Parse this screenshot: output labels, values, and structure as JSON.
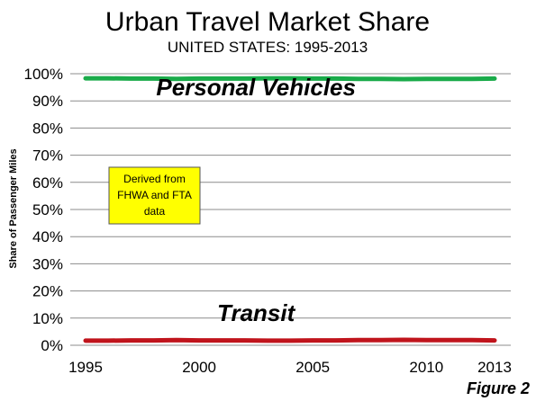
{
  "chart_data": {
    "type": "line",
    "title": "Urban Travel Market Share",
    "subtitle": "UNITED STATES: 1995-2013",
    "ylabel": "Share of Passenger Miles",
    "xlabel": "",
    "ylim": [
      0,
      100
    ],
    "xlim": [
      1995,
      2013
    ],
    "y_ticks": [
      "0%",
      "10%",
      "20%",
      "30%",
      "40%",
      "50%",
      "60%",
      "70%",
      "80%",
      "90%",
      "100%"
    ],
    "y_tick_values": [
      0,
      10,
      20,
      30,
      40,
      50,
      60,
      70,
      80,
      90,
      100
    ],
    "x_ticks": [
      "1995",
      "2000",
      "2005",
      "2010",
      "2013"
    ],
    "x_tick_values": [
      1995,
      2000,
      2005,
      2010,
      2013
    ],
    "grid": "horizontal",
    "x": [
      1995,
      1996,
      1997,
      1998,
      1999,
      2000,
      2001,
      2002,
      2003,
      2004,
      2005,
      2006,
      2007,
      2008,
      2009,
      2010,
      2011,
      2012,
      2013
    ],
    "series": [
      {
        "name": "Personal Vehicles",
        "color": "#1aab4a",
        "values": [
          98.3,
          98.3,
          98.2,
          98.2,
          98.1,
          98.2,
          98.2,
          98.2,
          98.3,
          98.3,
          98.2,
          98.2,
          98.1,
          98.1,
          98.0,
          98.1,
          98.1,
          98.1,
          98.2
        ]
      },
      {
        "name": "Transit",
        "color": "#c0141c",
        "values": [
          1.7,
          1.7,
          1.8,
          1.8,
          1.9,
          1.8,
          1.8,
          1.8,
          1.7,
          1.7,
          1.8,
          1.8,
          1.9,
          1.9,
          2.0,
          1.9,
          1.9,
          1.9,
          1.8
        ]
      }
    ],
    "annotations": [
      {
        "text": "Personal Vehicles",
        "x": 2002.5,
        "y": 92
      },
      {
        "text": "Transit",
        "x": 2002.5,
        "y": 9
      }
    ],
    "note": {
      "lines": [
        "Derived from",
        "FHWA and FTA",
        "data"
      ],
      "background": "#ffff00"
    },
    "figure_label": "Figure 2"
  }
}
